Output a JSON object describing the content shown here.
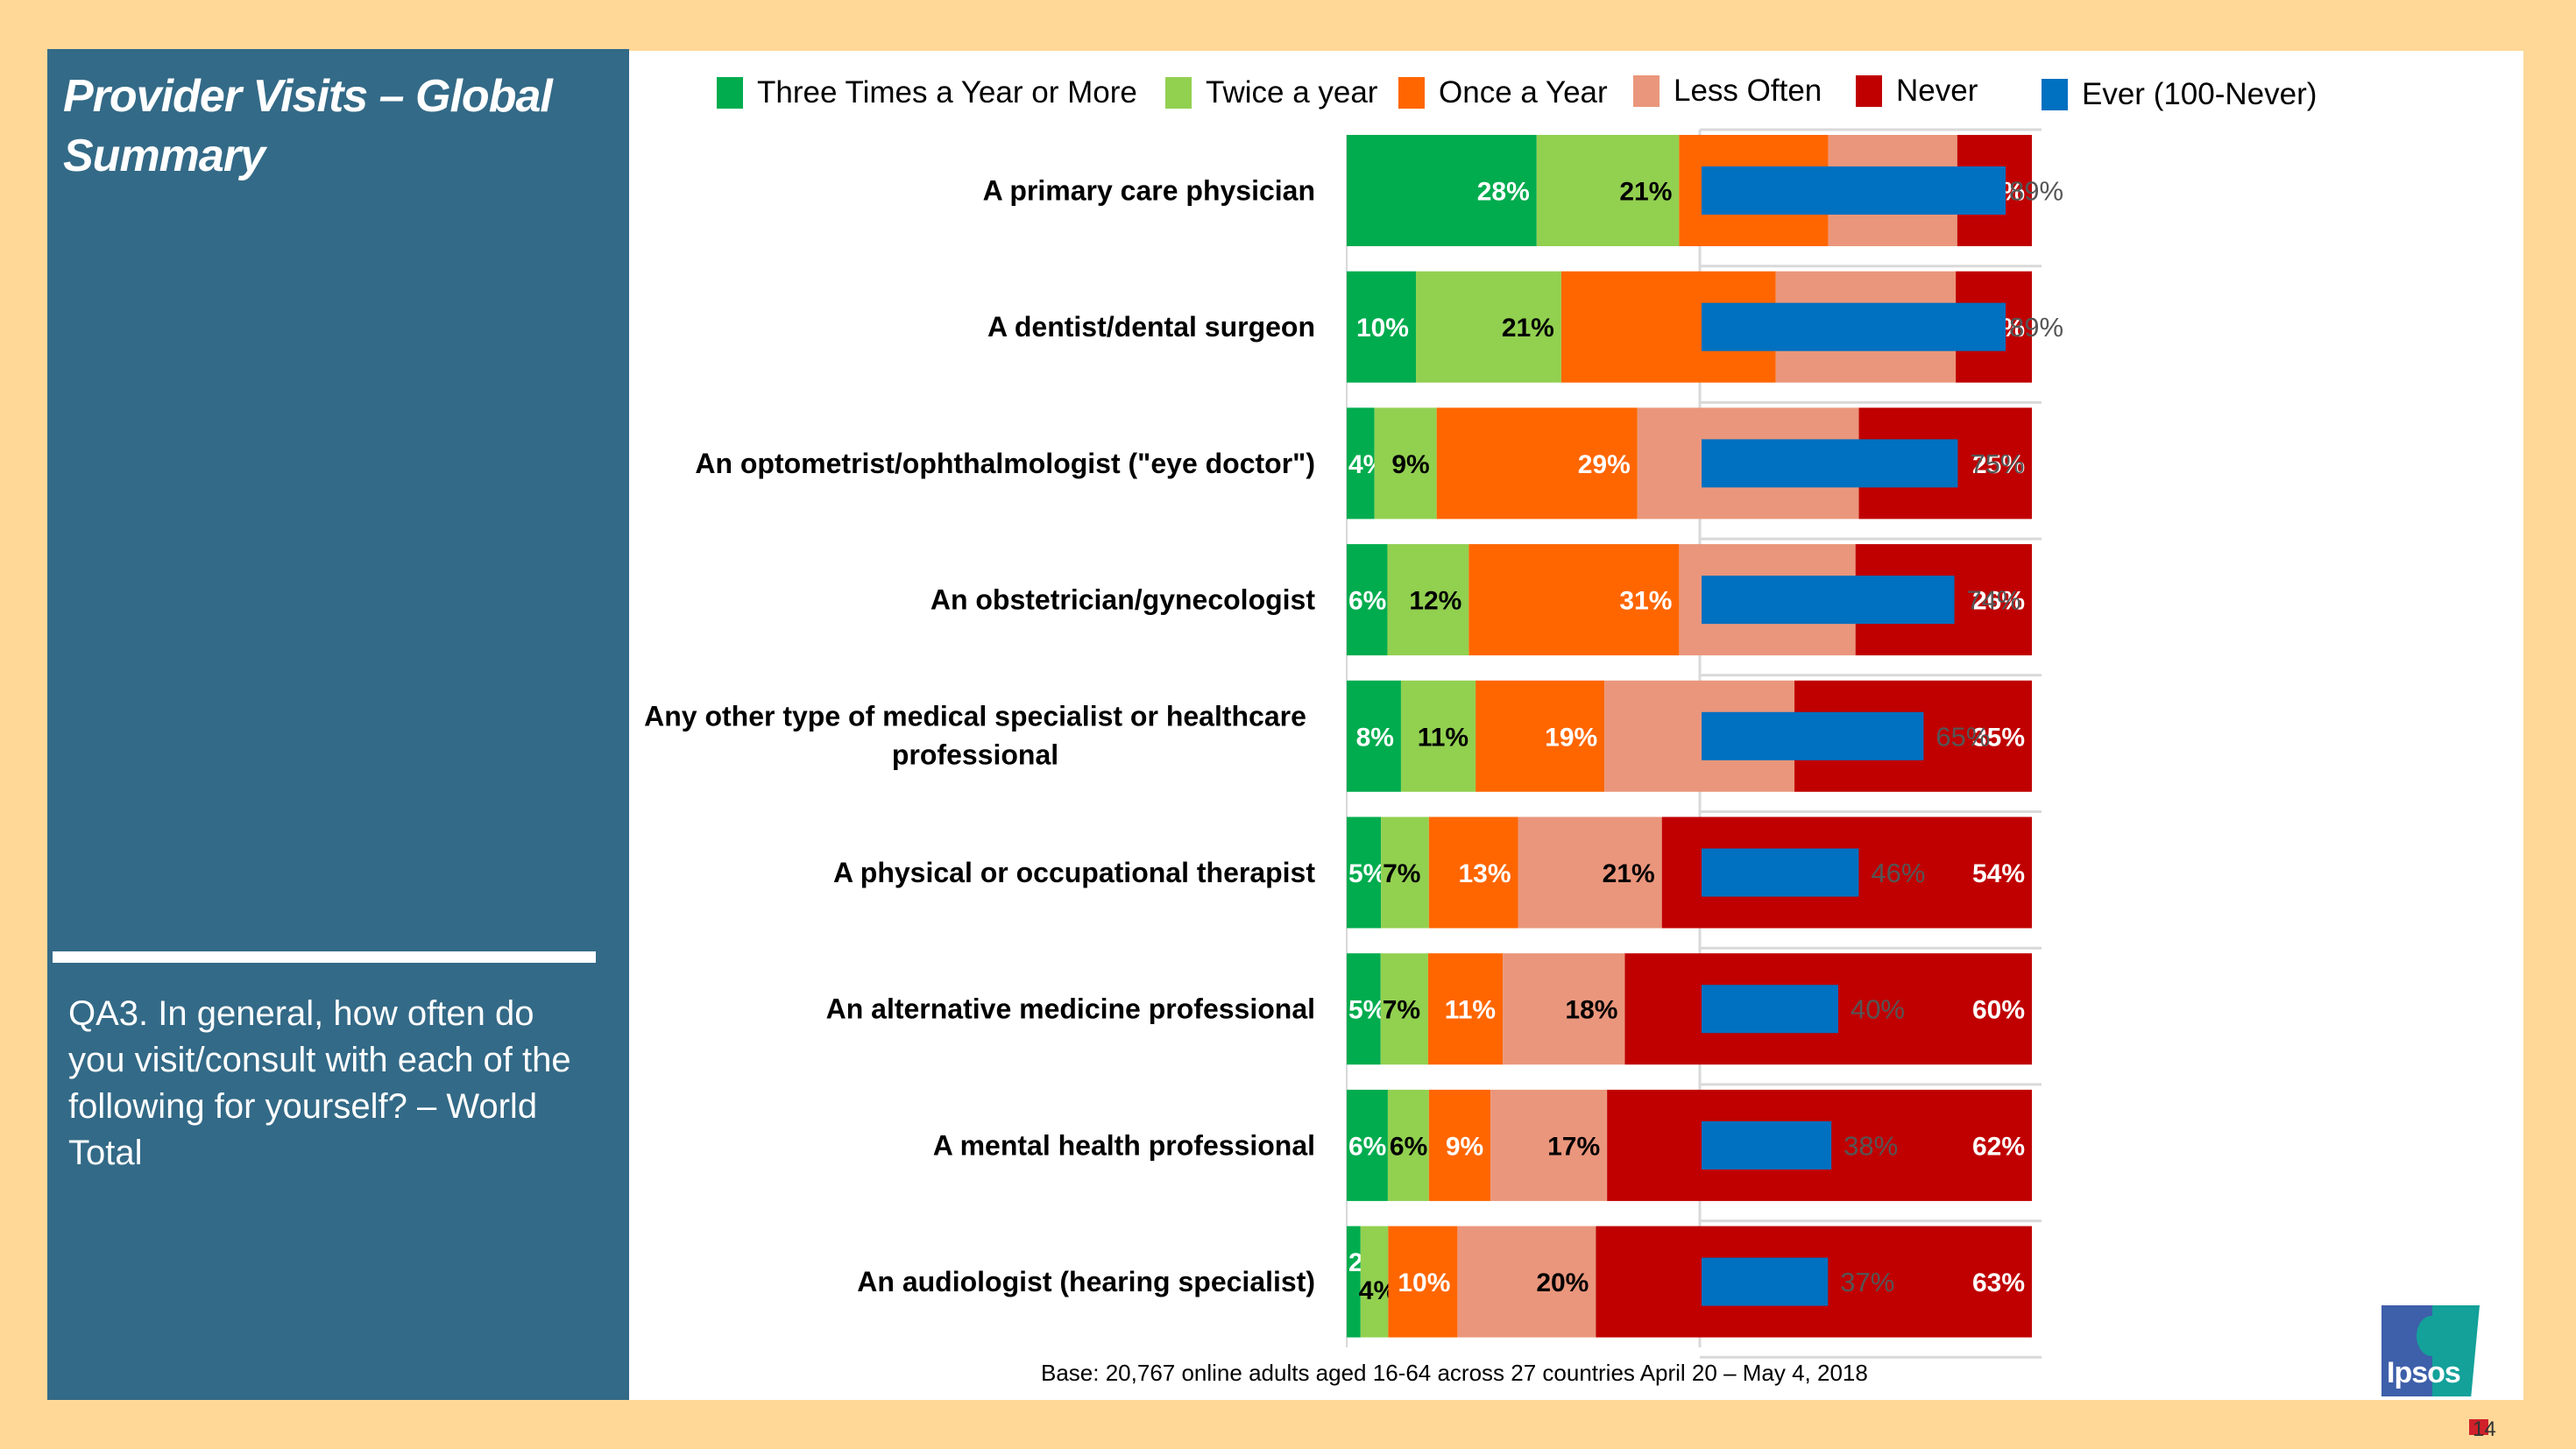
{
  "slide": {
    "title": "Provider Visits – Global Summary",
    "question": "QA3. In general, how often do you visit/consult with each of the following for yourself? – World Total",
    "base_note": "Base: 20,767 online adults aged 16-64 across 27 countries  April 20 – May 4, 2018",
    "logo_text": "Ipsos",
    "page_number": "14"
  },
  "colors": {
    "panel": "#336A87",
    "frame": "#FFD898",
    "three_times": "#00AC4E",
    "twice": "#92D050",
    "once": "#FF6600",
    "less_often": "#EA967C",
    "never": "#C00000",
    "ever": "#0070C0"
  },
  "chart_data": {
    "type": "bar",
    "orientation": "horizontal",
    "stacked": true,
    "title": "Provider Visits – Global Summary",
    "xlabel": "",
    "ylabel": "",
    "xlim": [
      0,
      100
    ],
    "unit": "%",
    "legend_position": "top",
    "categories": [
      "A primary care physician",
      "A dentist/dental surgeon",
      "An optometrist/ophthalmologist (\"eye doctor\")",
      "An obstetrician/gynecologist",
      "Any other type of medical specialist or healthcare professional",
      "A physical or occupational therapist",
      "An alternative medicine professional",
      "A mental health professional",
      "An audiologist (hearing specialist)"
    ],
    "series": [
      {
        "name": "Three Times a Year or More",
        "color_key": "three_times",
        "label_color": "#FFFFFF",
        "values": [
          28,
          10,
          4,
          6,
          8,
          5,
          5,
          6,
          2
        ]
      },
      {
        "name": "Twice a year",
        "color_key": "twice",
        "label_color": "#000000",
        "values": [
          21,
          21,
          9,
          12,
          11,
          7,
          7,
          6,
          4
        ]
      },
      {
        "name": "Once a Year",
        "color_key": "once",
        "label_color": "#FFFFFF",
        "values": [
          22,
          31,
          29,
          31,
          19,
          13,
          11,
          9,
          10
        ]
      },
      {
        "name": "Less Often",
        "color_key": "less_often",
        "label_color": "#000000",
        "values": [
          19,
          26,
          32,
          26,
          28,
          21,
          18,
          17,
          20
        ]
      },
      {
        "name": "Never",
        "color_key": "never",
        "label_color": "#FFFFFF",
        "values": [
          11,
          11,
          25,
          26,
          35,
          54,
          60,
          62,
          63
        ]
      }
    ],
    "secondary": {
      "name": "Ever (100-Never)",
      "color_key": "ever",
      "xlim": [
        0,
        100
      ],
      "values": [
        89,
        89,
        75,
        74,
        65,
        46,
        40,
        38,
        37
      ]
    }
  }
}
